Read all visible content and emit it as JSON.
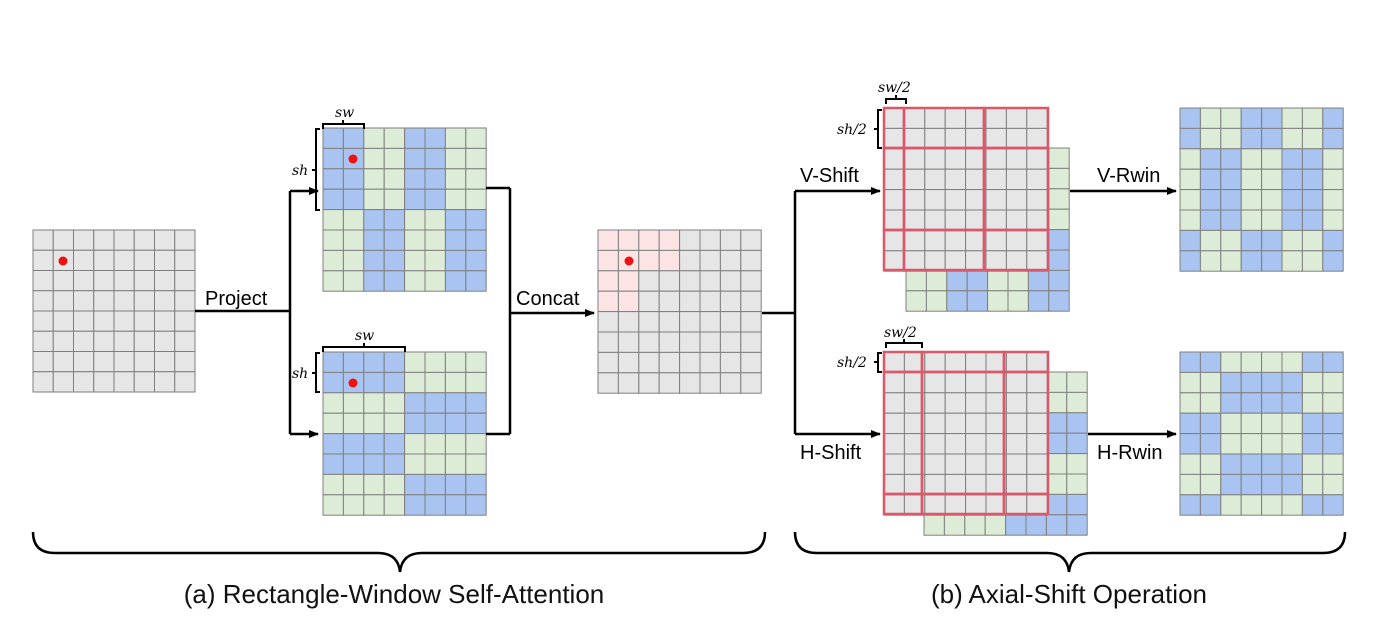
{
  "labels": {
    "project": "Project",
    "concat": "Concat",
    "v_shift": "V-Shift",
    "h_shift": "H-Shift",
    "v_rwin": "V-Rwin",
    "h_rwin": "H-Rwin",
    "sw": "sw",
    "sh": "sh",
    "sw_half": "sw/2",
    "sh_half": "sh/2"
  },
  "captions": {
    "a": "(a) Rectangle-Window Self-Attention",
    "b": "(b) Axial-Shift Operation"
  },
  "colors": {
    "gray": "#e6e6e6",
    "blue": "#a9c4f0",
    "green": "#dcecd6",
    "pink": "#fce4e4",
    "grid_line": "#7f7f7f",
    "window_border": "#d9596a",
    "dot": "#ee1111"
  }
}
